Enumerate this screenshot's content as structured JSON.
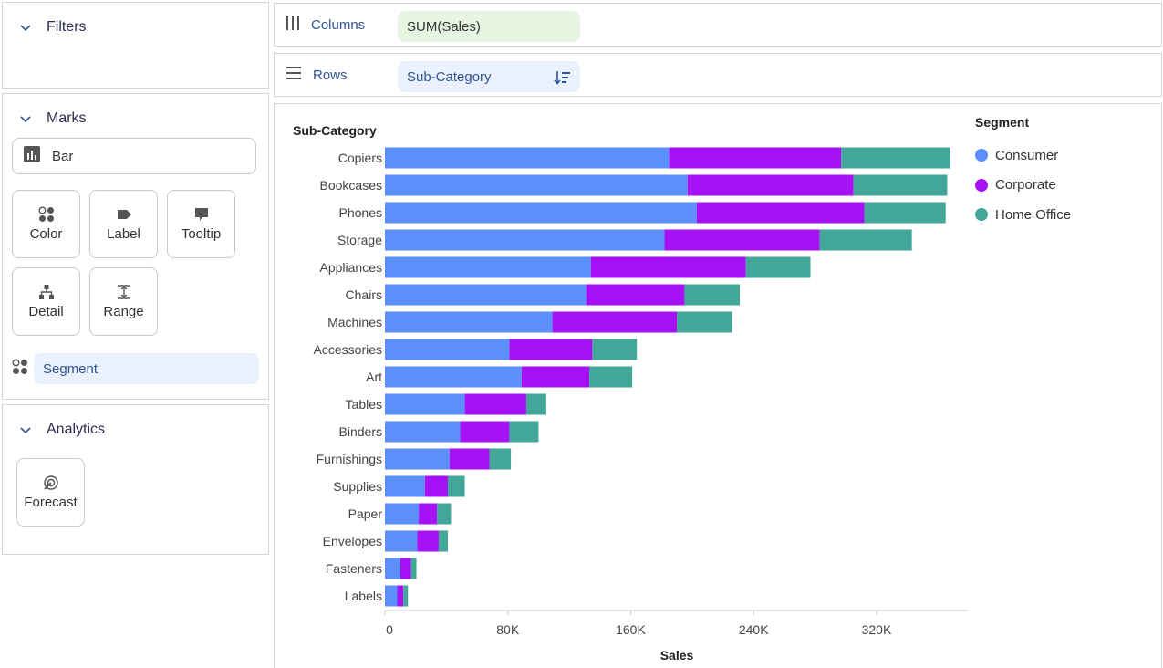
{
  "filters": {
    "title": "Filters"
  },
  "marks": {
    "title": "Marks",
    "mark_type": "Bar",
    "cards": {
      "color": "Color",
      "label": "Label",
      "tooltip": "Tooltip",
      "detail": "Detail",
      "range": "Range"
    },
    "color_field": "Segment"
  },
  "analytics": {
    "title": "Analytics",
    "forecast": "Forecast"
  },
  "shelves": {
    "columns": {
      "label": "Columns",
      "field": "SUM(Sales)"
    },
    "rows": {
      "label": "Rows",
      "field": "Sub-Category"
    }
  },
  "colors": {
    "consumer": "#5b8ff9",
    "corporate": "#a612f5",
    "home_office": "#42a699",
    "columns_pill": "#e6f4e2",
    "rows_pill": "#eaf1fc",
    "accent": "#2f5597"
  },
  "icons": {
    "filters_toggle": "chevron-down-icon",
    "bar_type": "bar-chart-icon",
    "color": "color-dots-icon",
    "label": "label-tag-icon",
    "tooltip": "speech-bubble-icon",
    "detail": "hierarchy-icon",
    "range": "range-icon",
    "forecast": "forecast-icon",
    "columns": "columns-icon",
    "rows": "rows-icon",
    "sort": "sort-descending-icon"
  },
  "chart_data": {
    "type": "bar",
    "orientation": "horizontal",
    "stacked": true,
    "title": "",
    "ylabel": "Sub-Category",
    "xlabel": "Sales",
    "xlim": [
      0,
      380000
    ],
    "x_ticks": [
      0,
      80000,
      160000,
      240000,
      320000
    ],
    "x_tick_labels": [
      "0",
      "80K",
      "160K",
      "240K",
      "320K"
    ],
    "grid": false,
    "legend_title": "Segment",
    "legend_position": "top-right",
    "categories": [
      "Copiers",
      "Bookcases",
      "Phones",
      "Storage",
      "Appliances",
      "Chairs",
      "Machines",
      "Accessories",
      "Art",
      "Tables",
      "Binders",
      "Furnishings",
      "Supplies",
      "Paper",
      "Envelopes",
      "Fasteners",
      "Labels"
    ],
    "series": [
      {
        "name": "Consumer",
        "values": [
          185000,
          197000,
          203000,
          182000,
          134000,
          131000,
          109000,
          81000,
          89000,
          52000,
          49000,
          42000,
          26000,
          22000,
          21000,
          10000,
          8000
        ]
      },
      {
        "name": "Corporate",
        "values": [
          112000,
          108000,
          109000,
          101000,
          101000,
          64000,
          81000,
          54000,
          44000,
          40000,
          32000,
          26000,
          15000,
          12000,
          14000,
          7000,
          4000
        ]
      },
      {
        "name": "Home Office",
        "values": [
          71000,
          61000,
          53000,
          60000,
          42000,
          36000,
          36000,
          29000,
          28000,
          13000,
          19000,
          14000,
          11000,
          9000,
          6000,
          3500,
          3000
        ]
      }
    ]
  }
}
